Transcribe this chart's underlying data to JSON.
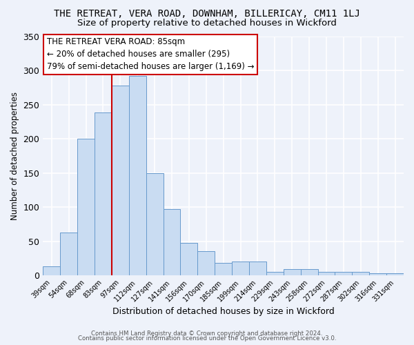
{
  "title": "THE RETREAT, VERA ROAD, DOWNHAM, BILLERICAY, CM11 1LJ",
  "subtitle": "Size of property relative to detached houses in Wickford",
  "xlabel": "Distribution of detached houses by size in Wickford",
  "ylabel": "Number of detached properties",
  "bar_labels": [
    "39sqm",
    "54sqm",
    "68sqm",
    "83sqm",
    "97sqm",
    "112sqm",
    "127sqm",
    "141sqm",
    "156sqm",
    "170sqm",
    "185sqm",
    "199sqm",
    "214sqm",
    "229sqm",
    "243sqm",
    "258sqm",
    "272sqm",
    "287sqm",
    "302sqm",
    "316sqm",
    "331sqm"
  ],
  "bar_values": [
    13,
    63,
    200,
    238,
    278,
    292,
    150,
    97,
    48,
    35,
    18,
    20,
    20,
    5,
    9,
    9,
    5,
    5,
    5,
    3,
    3
  ],
  "bar_color": "#c9dcf2",
  "bar_edge_color": "#6699cc",
  "ylim": [
    0,
    350
  ],
  "yticks": [
    0,
    50,
    100,
    150,
    200,
    250,
    300,
    350
  ],
  "annotation_title": "THE RETREAT VERA ROAD: 85sqm",
  "annotation_line1": "← 20% of detached houses are smaller (295)",
  "annotation_line2": "79% of semi-detached houses are larger (1,169) →",
  "annotation_box_color": "#ffffff",
  "annotation_box_edge": "#cc0000",
  "vline_color": "#cc0000",
  "footer1": "Contains HM Land Registry data © Crown copyright and database right 2024.",
  "footer2": "Contains public sector information licensed under the Open Government Licence v3.0.",
  "bg_color": "#eef2fa",
  "grid_color": "#ffffff",
  "title_fontsize": 10,
  "subtitle_fontsize": 9.5
}
